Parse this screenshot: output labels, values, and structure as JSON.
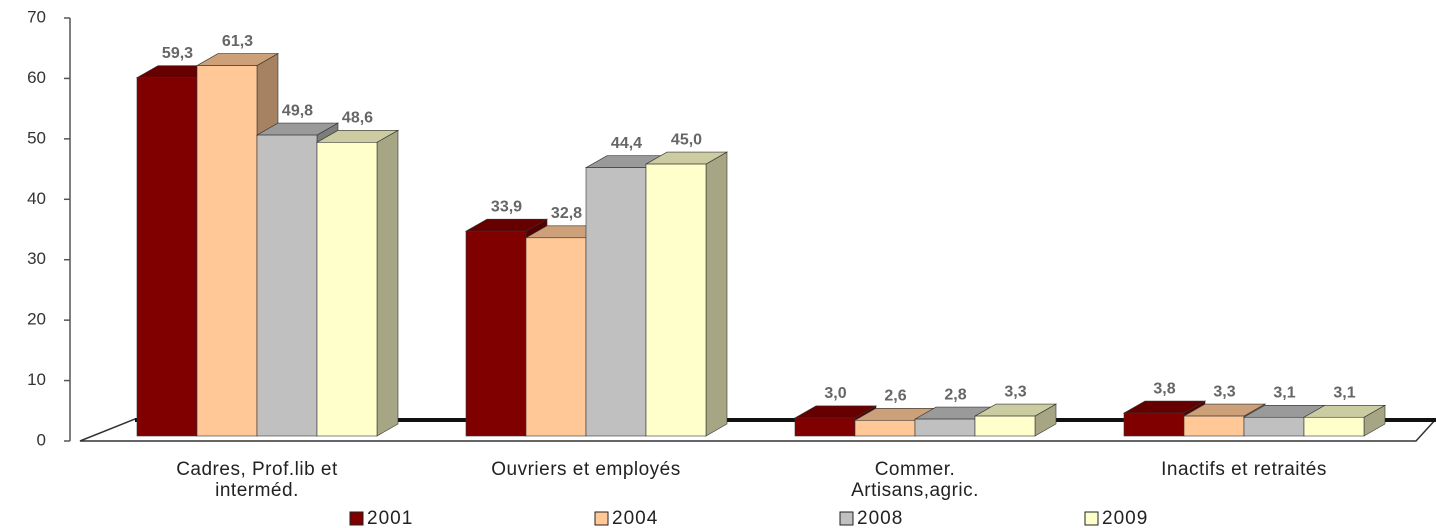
{
  "chart_data": {
    "type": "bar3d",
    "categories": [
      "Cadres, Prof.lib et interméd.",
      "Ouvriers et employés",
      "Commer. Artisans,agric.",
      "Inactifs et retraités"
    ],
    "series": [
      {
        "name": "2001",
        "color": "#800000",
        "values": [
          59.3,
          33.9,
          3.0,
          3.8
        ],
        "value_labels": [
          "59,3",
          "33,9",
          "3,0",
          "3,8"
        ]
      },
      {
        "name": "2004",
        "color": "#ffc896",
        "values": [
          61.3,
          32.8,
          2.6,
          3.3
        ],
        "value_labels": [
          "61,3",
          "32,8",
          "2,6",
          "3,3"
        ]
      },
      {
        "name": "2008",
        "color": "#c0c0c0",
        "values": [
          49.8,
          44.4,
          2.8,
          3.1
        ],
        "value_labels": [
          "49,8",
          "44,4",
          "2,8",
          "3,1"
        ]
      },
      {
        "name": "2009",
        "color": "#ffffcc",
        "values": [
          48.6,
          45.0,
          3.3,
          3.1
        ],
        "value_labels": [
          "48,6",
          "45,0",
          "3,3",
          "3,1"
        ]
      }
    ],
    "ylim": [
      0,
      70
    ],
    "yticks": [
      0,
      10,
      20,
      30,
      40,
      50,
      60,
      70
    ],
    "legend": "bottom"
  }
}
